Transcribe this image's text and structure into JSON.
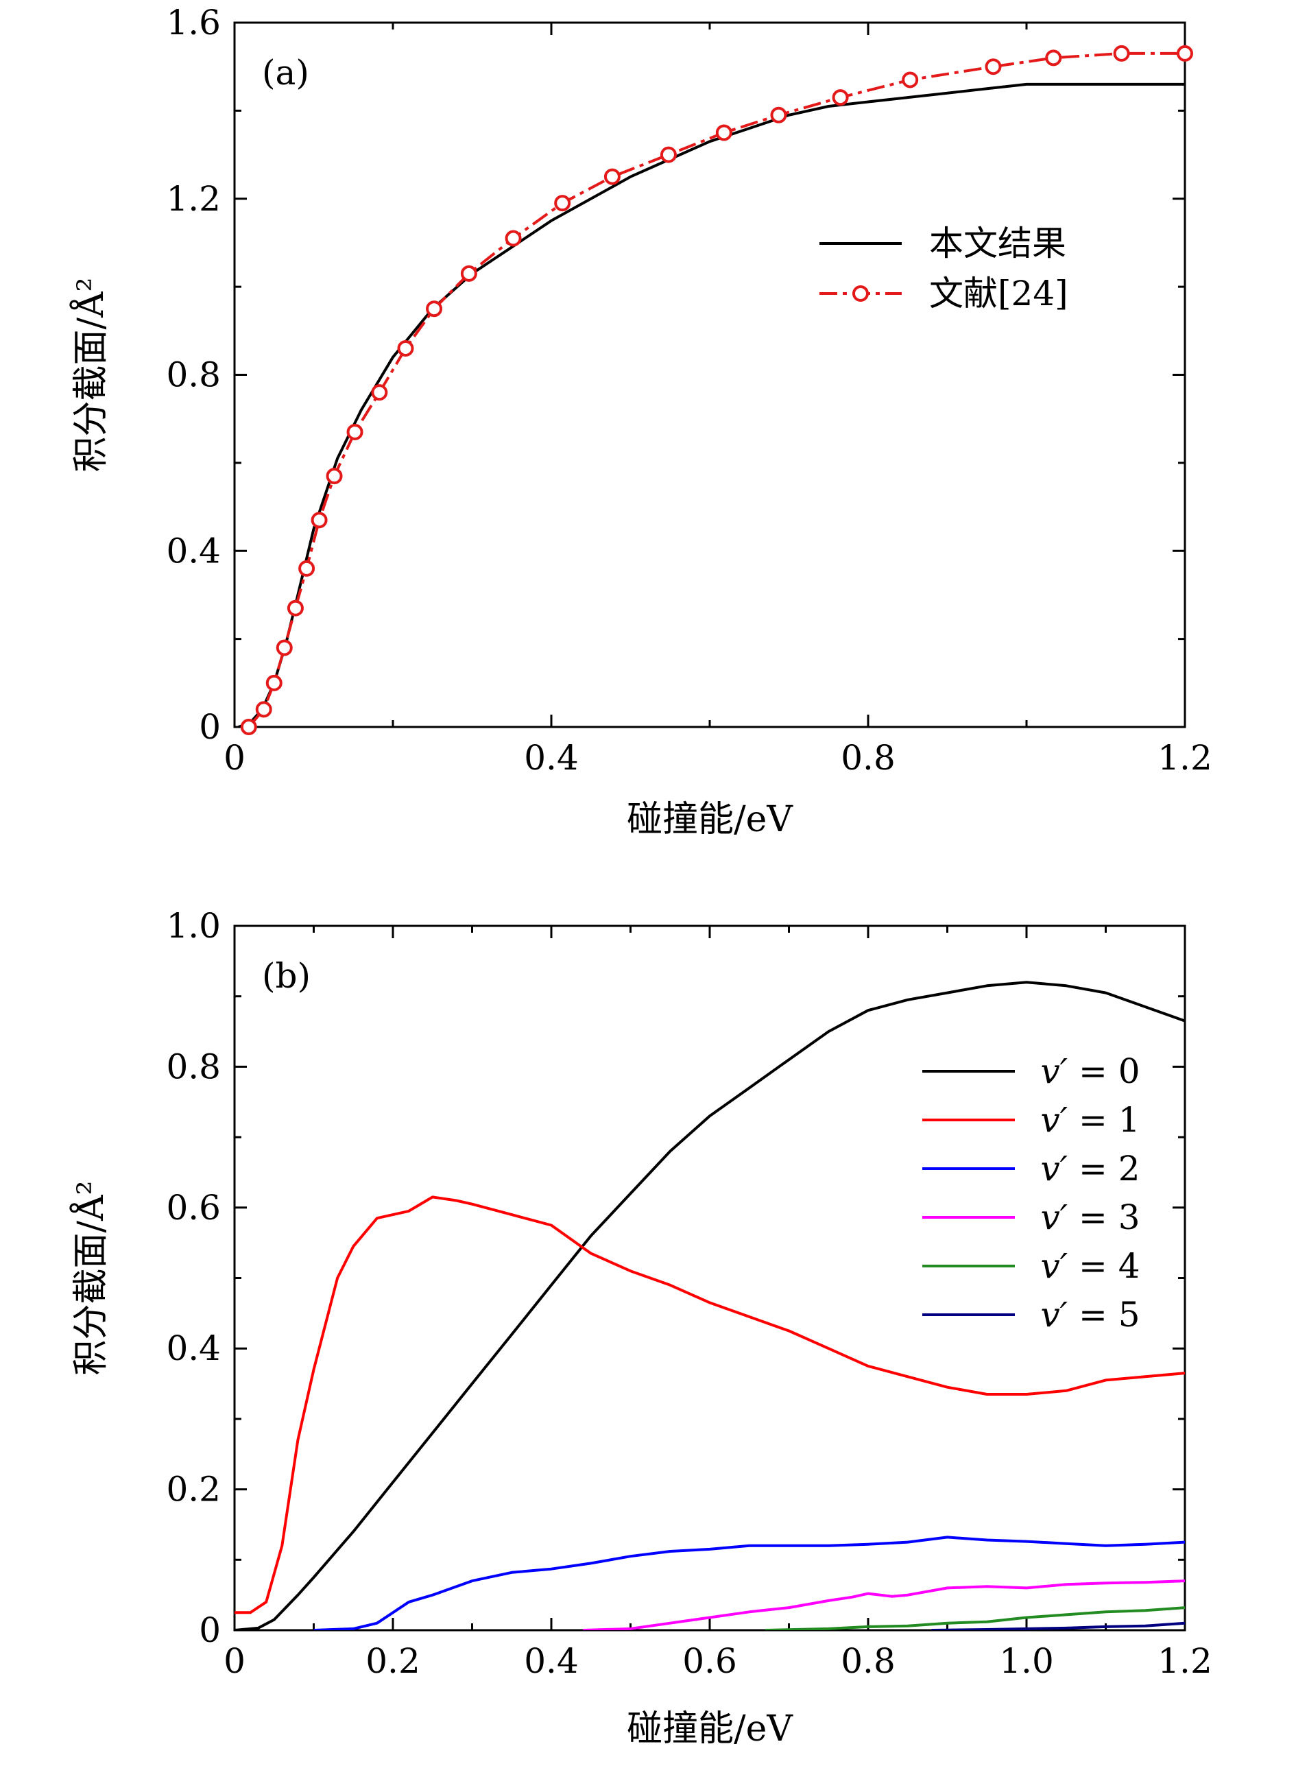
{
  "chart_data": [
    {
      "type": "line",
      "panel_label": "(a)",
      "xlabel": "碰撞能/eV",
      "ylabel": "积分截面/Å²",
      "xlim": [
        0,
        1.2
      ],
      "ylim": [
        0,
        1.6
      ],
      "xticks": [
        0,
        0.4,
        0.8,
        1.2
      ],
      "xtick_labels": [
        "0",
        "0.4",
        "0.8",
        "1.2"
      ],
      "yticks": [
        0,
        0.4,
        0.8,
        1.2,
        1.6
      ],
      "ytick_labels": [
        "0",
        "0.4",
        "0.8",
        "1.2",
        "1.6"
      ],
      "legend_position": "right",
      "series": [
        {
          "name": "本文结果",
          "color": "#000000",
          "style": "solid",
          "marker": "none",
          "x": [
            0.005,
            0.02,
            0.035,
            0.05,
            0.065,
            0.08,
            0.1,
            0.13,
            0.16,
            0.2,
            0.25,
            0.3,
            0.35,
            0.4,
            0.45,
            0.5,
            0.55,
            0.6,
            0.65,
            0.7,
            0.75,
            0.8,
            0.85,
            0.9,
            0.95,
            1.0,
            1.05,
            1.1,
            1.15,
            1.2
          ],
          "y": [
            0.0,
            0.01,
            0.04,
            0.1,
            0.19,
            0.3,
            0.45,
            0.61,
            0.72,
            0.84,
            0.95,
            1.03,
            1.09,
            1.15,
            1.2,
            1.25,
            1.29,
            1.33,
            1.36,
            1.39,
            1.41,
            1.42,
            1.43,
            1.44,
            1.45,
            1.46,
            1.46,
            1.46,
            1.46,
            1.46
          ]
        },
        {
          "name": "文献[24]",
          "color": "#e41a1a",
          "style": "dashdot",
          "marker": "circle-open",
          "x": [
            0.018,
            0.037,
            0.05,
            0.063,
            0.077,
            0.091,
            0.107,
            0.126,
            0.152,
            0.183,
            0.216,
            0.252,
            0.296,
            0.352,
            0.414,
            0.477,
            0.548,
            0.618,
            0.687,
            0.765,
            0.853,
            0.958,
            1.034,
            1.12,
            1.2
          ],
          "y": [
            0.0,
            0.04,
            0.1,
            0.18,
            0.27,
            0.36,
            0.47,
            0.57,
            0.67,
            0.76,
            0.86,
            0.95,
            1.03,
            1.11,
            1.19,
            1.25,
            1.3,
            1.35,
            1.39,
            1.43,
            1.47,
            1.5,
            1.52,
            1.53,
            1.53
          ]
        }
      ]
    },
    {
      "type": "line",
      "panel_label": "(b)",
      "xlabel": "碰撞能/eV",
      "ylabel": "积分截面/Å²",
      "xlim": [
        0,
        1.2
      ],
      "ylim": [
        0,
        1.0
      ],
      "xticks": [
        0,
        0.2,
        0.4,
        0.6,
        0.8,
        1.0,
        1.2
      ],
      "xtick_labels": [
        "0",
        "0.2",
        "0.4",
        "0.6",
        "0.8",
        "1.0",
        "1.2"
      ],
      "yticks": [
        0,
        0.2,
        0.4,
        0.6,
        0.8,
        1.0
      ],
      "ytick_labels": [
        "0",
        "0.2",
        "0.4",
        "0.6",
        "0.8",
        "1.0"
      ],
      "legend_position": "right",
      "series": [
        {
          "name": "v′ = 0",
          "math_var": "v′",
          "math_value": "0",
          "color": "#000000",
          "x": [
            0,
            0.03,
            0.05,
            0.08,
            0.1,
            0.15,
            0.2,
            0.25,
            0.3,
            0.35,
            0.4,
            0.45,
            0.5,
            0.55,
            0.6,
            0.65,
            0.7,
            0.75,
            0.8,
            0.85,
            0.9,
            0.95,
            1.0,
            1.05,
            1.1,
            1.15,
            1.2
          ],
          "y": [
            0.0,
            0.003,
            0.015,
            0.05,
            0.075,
            0.14,
            0.21,
            0.28,
            0.35,
            0.42,
            0.49,
            0.56,
            0.62,
            0.68,
            0.73,
            0.77,
            0.81,
            0.85,
            0.88,
            0.895,
            0.905,
            0.915,
            0.92,
            0.915,
            0.905,
            0.885,
            0.865
          ]
        },
        {
          "name": "v′ = 1",
          "math_var": "v′",
          "math_value": "1",
          "color": "#ff0000",
          "x": [
            0,
            0.02,
            0.04,
            0.06,
            0.08,
            0.1,
            0.13,
            0.15,
            0.18,
            0.2,
            0.22,
            0.25,
            0.28,
            0.3,
            0.35,
            0.4,
            0.45,
            0.5,
            0.55,
            0.6,
            0.65,
            0.7,
            0.75,
            0.8,
            0.85,
            0.9,
            0.95,
            1.0,
            1.05,
            1.1,
            1.15,
            1.2
          ],
          "y": [
            0.025,
            0.025,
            0.04,
            0.12,
            0.27,
            0.37,
            0.5,
            0.545,
            0.585,
            0.59,
            0.595,
            0.615,
            0.61,
            0.605,
            0.59,
            0.575,
            0.535,
            0.51,
            0.49,
            0.465,
            0.445,
            0.425,
            0.4,
            0.375,
            0.36,
            0.345,
            0.335,
            0.335,
            0.34,
            0.355,
            0.36,
            0.365
          ]
        },
        {
          "name": "v′ = 2",
          "math_var": "v′",
          "math_value": "2",
          "color": "#0000ff",
          "x": [
            0.1,
            0.15,
            0.18,
            0.2,
            0.22,
            0.25,
            0.3,
            0.35,
            0.4,
            0.45,
            0.5,
            0.55,
            0.6,
            0.65,
            0.7,
            0.75,
            0.8,
            0.85,
            0.9,
            0.95,
            1.0,
            1.05,
            1.1,
            1.15,
            1.2
          ],
          "y": [
            0.0,
            0.002,
            0.01,
            0.025,
            0.04,
            0.05,
            0.07,
            0.082,
            0.087,
            0.095,
            0.105,
            0.112,
            0.115,
            0.12,
            0.12,
            0.12,
            0.122,
            0.125,
            0.132,
            0.128,
            0.126,
            0.123,
            0.12,
            0.122,
            0.125
          ]
        },
        {
          "name": "v′ = 3",
          "math_var": "v′",
          "math_value": "3",
          "color": "#ff00ff",
          "x": [
            0.44,
            0.5,
            0.55,
            0.6,
            0.65,
            0.7,
            0.75,
            0.78,
            0.8,
            0.83,
            0.85,
            0.9,
            0.95,
            1.0,
            1.05,
            1.1,
            1.15,
            1.2
          ],
          "y": [
            0.0,
            0.002,
            0.01,
            0.018,
            0.026,
            0.032,
            0.042,
            0.047,
            0.052,
            0.048,
            0.05,
            0.06,
            0.062,
            0.06,
            0.065,
            0.067,
            0.068,
            0.07
          ]
        },
        {
          "name": "v′ = 4",
          "math_var": "v′",
          "math_value": "4",
          "color": "#228b22",
          "x": [
            0.67,
            0.75,
            0.8,
            0.85,
            0.9,
            0.95,
            1.0,
            1.05,
            1.1,
            1.15,
            1.2
          ],
          "y": [
            0.0,
            0.002,
            0.005,
            0.006,
            0.01,
            0.012,
            0.018,
            0.022,
            0.026,
            0.028,
            0.032
          ]
        },
        {
          "name": "v′ = 5",
          "math_var": "v′",
          "math_value": "5",
          "color": "#000080",
          "x": [
            0.88,
            0.95,
            1.0,
            1.05,
            1.1,
            1.15,
            1.2
          ],
          "y": [
            0.0,
            0.001,
            0.002,
            0.003,
            0.005,
            0.006,
            0.01
          ]
        }
      ]
    }
  ]
}
